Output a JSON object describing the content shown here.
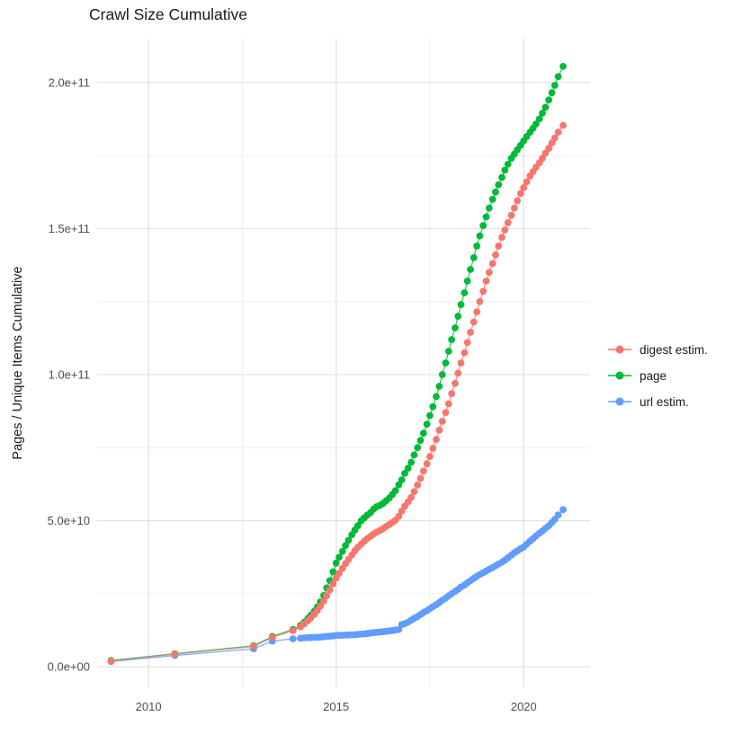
{
  "figure": {
    "title": "Crawl Size Cumulative"
  },
  "chart_data": {
    "type": "scatter",
    "title": "Crawl Size Cumulative",
    "xlabel": "",
    "ylabel": "Pages / Unique Items Cumulative",
    "grid": true,
    "legend_position": "right",
    "value_unit": "items (values given in billions, 1e9)",
    "xlim": [
      2008.63,
      2021.77
    ],
    "ylim_e9": [
      -7,
      215
    ],
    "x_ticks": [
      {
        "value": 2010,
        "label": "2010"
      },
      {
        "value": 2015,
        "label": "2015"
      },
      {
        "value": 2020,
        "label": "2020"
      }
    ],
    "x_minor_ticks": [
      2012.5,
      2017.5
    ],
    "y_ticks": [
      {
        "value_e9": 0,
        "label": "0.0e+00"
      },
      {
        "value_e9": 50,
        "label": "5.0e+10"
      },
      {
        "value_e9": 100,
        "label": "1.0e+11"
      },
      {
        "value_e9": 150,
        "label": "1.5e+11"
      },
      {
        "value_e9": 200,
        "label": "2.0e+11"
      }
    ],
    "y_minor_ticks_e9": [
      25,
      75,
      125,
      175
    ],
    "x_years": [
      2009.0,
      2010.7,
      2012.8,
      2013.3,
      2013.85,
      2014.05,
      2014.15,
      2014.25,
      2014.33,
      2014.42,
      2014.5,
      2014.58,
      2014.67,
      2014.75,
      2014.83,
      2014.92,
      2015.0,
      2015.08,
      2015.17,
      2015.25,
      2015.33,
      2015.42,
      2015.5,
      2015.58,
      2015.67,
      2015.75,
      2015.83,
      2015.92,
      2016.0,
      2016.08,
      2016.17,
      2016.25,
      2016.33,
      2016.42,
      2016.5,
      2016.58,
      2016.67,
      2016.75,
      2016.83,
      2016.92,
      2017.0,
      2017.08,
      2017.17,
      2017.25,
      2017.33,
      2017.42,
      2017.5,
      2017.58,
      2017.67,
      2017.75,
      2017.83,
      2017.92,
      2018.0,
      2018.08,
      2018.17,
      2018.25,
      2018.33,
      2018.42,
      2018.5,
      2018.58,
      2018.67,
      2018.75,
      2018.83,
      2018.92,
      2019.0,
      2019.08,
      2019.17,
      2019.25,
      2019.33,
      2019.42,
      2019.5,
      2019.58,
      2019.67,
      2019.75,
      2019.83,
      2019.92,
      2020.0,
      2020.08,
      2020.17,
      2020.25,
      2020.33,
      2020.42,
      2020.5,
      2020.58,
      2020.67,
      2020.75,
      2020.83,
      2020.92,
      2021.05
    ],
    "series": [
      {
        "name": "digest estim.",
        "color": "#F8766D",
        "values_e9": [
          2.0,
          4.3,
          7.0,
          10.1,
          12.4,
          13.7,
          14.7,
          15.8,
          16.8,
          18.0,
          19.3,
          20.8,
          22.5,
          24.3,
          26.3,
          28.4,
          30.4,
          32.0,
          33.7,
          35.3,
          36.8,
          38.3,
          39.7,
          40.9,
          42.0,
          43.0,
          43.9,
          44.7,
          45.5,
          46.1,
          46.7,
          47.3,
          48.0,
          48.7,
          49.4,
          50.2,
          51.5,
          53.3,
          55.0,
          56.5,
          58.0,
          60.0,
          62.2,
          64.5,
          67.0,
          69.5,
          72.0,
          74.8,
          77.8,
          81.0,
          84.0,
          87.0,
          90.0,
          93.5,
          97.0,
          100.5,
          104.0,
          107.5,
          111.0,
          114.5,
          118.0,
          121.5,
          125.0,
          128.5,
          132.0,
          135.0,
          138.0,
          141.0,
          144.0,
          147.0,
          149.5,
          152.0,
          154.5,
          157.0,
          159.5,
          162.0,
          164.0,
          166.0,
          168.0,
          169.5,
          171.0,
          172.5,
          174.0,
          175.8,
          177.5,
          179.3,
          181.0,
          183.0,
          185.3
        ]
      },
      {
        "name": "page",
        "color": "#00BA38",
        "values_e9": [
          2.2,
          4.5,
          7.2,
          10.4,
          12.8,
          14.2,
          15.3,
          16.6,
          17.7,
          19.0,
          20.5,
          22.2,
          24.4,
          27.0,
          29.5,
          32.5,
          35.5,
          37.5,
          39.5,
          41.5,
          43.3,
          45.2,
          46.8,
          48.3,
          50.0,
          51.0,
          51.9,
          52.8,
          54.0,
          54.8,
          55.3,
          55.9,
          56.8,
          57.8,
          59.0,
          60.3,
          62.3,
          64.0,
          66.2,
          68.0,
          70.0,
          72.5,
          75.0,
          77.5,
          80.0,
          83.0,
          86.0,
          89.0,
          92.5,
          96.0,
          100.0,
          104.0,
          108.0,
          112.0,
          116.0,
          120.0,
          124.0,
          128.0,
          132.0,
          136.0,
          140.0,
          144.0,
          147.5,
          151.0,
          154.0,
          157.0,
          160.0,
          162.5,
          165.0,
          167.5,
          170.0,
          172.0,
          174.0,
          175.5,
          177.0,
          178.5,
          180.0,
          181.5,
          183.0,
          184.3,
          185.8,
          187.5,
          189.5,
          191.5,
          194.0,
          196.5,
          199.0,
          202.0,
          205.5
        ]
      },
      {
        "name": "url estim.",
        "color": "#619CFF",
        "values_e9": [
          1.8,
          3.9,
          6.2,
          8.8,
          9.6,
          9.8,
          9.9,
          10.0,
          10.0,
          10.1,
          10.1,
          10.2,
          10.3,
          10.4,
          10.5,
          10.6,
          10.7,
          10.8,
          10.8,
          10.9,
          10.9,
          11.0,
          11.0,
          11.1,
          11.2,
          11.3,
          11.4,
          11.6,
          11.7,
          11.8,
          11.9,
          12.0,
          12.2,
          12.3,
          12.4,
          12.6,
          12.8,
          14.5,
          14.8,
          15.3,
          16.0,
          16.6,
          17.2,
          17.9,
          18.6,
          19.2,
          19.9,
          20.6,
          21.3,
          22.0,
          22.8,
          23.5,
          24.3,
          25.0,
          25.8,
          26.5,
          27.3,
          28.0,
          28.8,
          29.5,
          30.3,
          31.0,
          31.6,
          32.2,
          32.8,
          33.4,
          34.0,
          34.6,
          35.2,
          35.8,
          36.5,
          37.3,
          38.2,
          39.0,
          39.7,
          40.4,
          41.0,
          42.0,
          43.0,
          43.9,
          44.8,
          45.7,
          46.5,
          47.4,
          48.3,
          49.4,
          50.5,
          52.0,
          53.8
        ]
      }
    ],
    "draw_order": [
      1,
      2,
      0
    ],
    "style": {
      "grid_major_color": "#E2E2E2",
      "grid_minor_color": "#F0F0F0",
      "tick_label_color": "#4D4D4D",
      "point_radius": 3.9,
      "line_width": 1.2
    }
  }
}
